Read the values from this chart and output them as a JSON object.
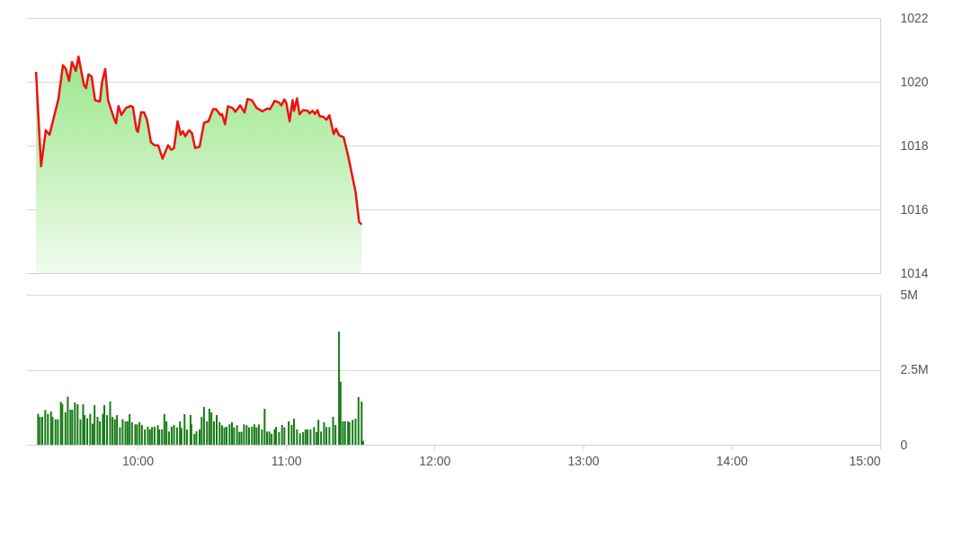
{
  "chart_data": [
    {
      "type": "area",
      "xlim": [
        9.25,
        15
      ],
      "ylim": [
        1014,
        1022
      ],
      "yticks": [
        1014,
        1016,
        1018,
        1020,
        1022
      ],
      "grid": "y",
      "tick_labels": "y",
      "x": [
        9.317,
        9.351,
        9.383,
        9.408,
        9.468,
        9.498,
        9.518,
        9.539,
        9.559,
        9.585,
        9.603,
        9.64,
        9.654,
        9.67,
        9.691,
        9.715,
        9.747,
        9.761,
        9.783,
        9.802,
        9.842,
        9.856,
        9.872,
        9.892,
        9.923,
        9.953,
        9.969,
        9.994,
        10.003,
        10.024,
        10.044,
        10.064,
        10.091,
        10.115,
        10.139,
        10.169,
        10.206,
        10.226,
        10.246,
        10.27,
        10.291,
        10.306,
        10.321,
        10.347,
        10.367,
        10.388,
        10.418,
        10.448,
        10.478,
        10.509,
        10.529,
        10.559,
        10.569,
        10.589,
        10.609,
        10.64,
        10.66,
        10.691,
        10.721,
        10.741,
        10.771,
        10.802,
        10.842,
        10.872,
        10.892,
        10.923,
        10.953,
        10.969,
        10.989,
        11.003,
        11.024,
        11.044,
        11.054,
        11.074,
        11.091,
        11.115,
        11.145,
        11.159,
        11.179,
        11.195,
        11.212,
        11.226,
        11.252,
        11.272,
        11.292,
        11.321,
        11.337,
        11.357,
        11.388,
        11.418,
        11.468,
        11.492,
        11.509
      ],
      "series": [
        {
          "color": "#ee1111",
          "values": [
            1020.31,
            1017.35,
            1018.48,
            1018.34,
            1019.46,
            1020.52,
            1020.4,
            1020.03,
            1020.62,
            1020.34,
            1020.79,
            1019.89,
            1019.8,
            1020.23,
            1020.17,
            1019.42,
            1019.38,
            1019.98,
            1020.4,
            1019.42,
            1018.85,
            1018.7,
            1019.24,
            1018.96,
            1019.18,
            1019.24,
            1019.21,
            1018.48,
            1018.43,
            1019.04,
            1019.04,
            1018.81,
            1018.1,
            1018.01,
            1018.01,
            1017.59,
            1018.01,
            1017.87,
            1017.92,
            1018.76,
            1018.34,
            1018.45,
            1018.29,
            1018.48,
            1018.39,
            1017.92,
            1017.96,
            1018.71,
            1018.76,
            1019.14,
            1019.14,
            1018.95,
            1018.99,
            1018.67,
            1019.23,
            1019.18,
            1019.06,
            1019.26,
            1019.04,
            1019.46,
            1019.42,
            1019.18,
            1019.07,
            1019.16,
            1019.14,
            1019.4,
            1019.35,
            1019.26,
            1019.45,
            1019.32,
            1018.76,
            1019.42,
            1019.09,
            1019.48,
            1018.98,
            1019.11,
            1019.09,
            1019.01,
            1019.09,
            1018.99,
            1019.11,
            1018.92,
            1018.9,
            1018.81,
            1018.95,
            1018.36,
            1018.53,
            1018.32,
            1018.26,
            1017.68,
            1016.55,
            1015.61,
            1015.52
          ]
        }
      ]
    },
    {
      "type": "bar",
      "xlim": [
        9.25,
        15
      ],
      "xticks": [
        {
          "value": 10,
          "label": "10:00"
        },
        {
          "value": 11,
          "label": "11:00"
        },
        {
          "value": 12,
          "label": "12:00"
        },
        {
          "value": 13,
          "label": "13:00"
        },
        {
          "value": 14,
          "label": "14:00"
        },
        {
          "value": 15,
          "label": "15:00"
        }
      ],
      "ylim": [
        0,
        5
      ],
      "yticks": [
        0,
        {
          "value": 2.5,
          "label": "2.5M"
        },
        {
          "value": 5,
          "label": "5M"
        }
      ],
      "grid": "y",
      "color": "#157a15",
      "x": [
        9.331,
        9.343,
        9.359,
        9.379,
        9.397,
        9.418,
        9.428,
        9.448,
        9.464,
        9.484,
        9.494,
        9.515,
        9.531,
        9.549,
        9.561,
        9.579,
        9.597,
        9.616,
        9.634,
        9.644,
        9.662,
        9.682,
        9.698,
        9.711,
        9.731,
        9.747,
        9.767,
        9.777,
        9.795,
        9.816,
        9.832,
        9.848,
        9.862,
        9.882,
        9.9,
        9.919,
        9.933,
        9.947,
        9.963,
        9.985,
        9.997,
        10.014,
        10.03,
        10.05,
        10.07,
        10.084,
        10.098,
        10.115,
        10.137,
        10.147,
        10.165,
        10.181,
        10.195,
        10.212,
        10.23,
        10.246,
        10.266,
        10.286,
        10.296,
        10.317,
        10.333,
        10.357,
        10.363,
        10.383,
        10.397,
        10.418,
        10.432,
        10.448,
        10.468,
        10.484,
        10.498,
        10.515,
        10.533,
        10.553,
        10.569,
        10.585,
        10.6,
        10.62,
        10.636,
        10.65,
        10.67,
        10.686,
        10.7,
        10.717,
        10.735,
        10.751,
        10.771,
        10.787,
        10.802,
        10.817,
        10.838,
        10.856,
        10.872,
        10.888,
        10.903,
        10.923,
        10.933,
        10.953,
        10.973,
        10.989,
        11.018,
        11.038,
        11.054,
        11.074,
        11.094,
        11.115,
        11.131,
        11.145,
        11.165,
        11.189,
        11.206,
        11.218,
        11.236,
        11.256,
        11.272,
        11.292,
        11.317,
        11.333,
        11.357,
        11.367,
        11.383,
        11.397,
        11.418,
        11.427,
        11.448,
        11.468,
        11.488,
        11.509,
        11.519
      ],
      "values": [
        1.03,
        0.93,
        0.93,
        1.16,
        1.03,
        1.11,
        0.93,
        0.85,
        0.85,
        1.43,
        1.36,
        1.08,
        1.6,
        1.17,
        1.17,
        1.41,
        1.35,
        0.85,
        1.35,
        0.99,
        0.88,
        1.03,
        0.7,
        1.32,
        0.93,
        0.78,
        1.03,
        1.32,
        0.99,
        1.44,
        0.93,
        0.85,
        0.99,
        0.58,
        0.85,
        0.78,
        0.78,
        1.02,
        0.75,
        0.68,
        0.68,
        0.75,
        0.66,
        0.51,
        0.6,
        0.51,
        0.59,
        0.6,
        0.65,
        0.51,
        0.51,
        1.02,
        0.78,
        0.44,
        0.6,
        0.66,
        0.58,
        0.78,
        0.56,
        1.02,
        0.51,
        0.99,
        0.68,
        0.36,
        0.45,
        0.51,
        0.93,
        1.26,
        0.78,
        1.2,
        1.08,
        0.78,
        0.99,
        0.75,
        0.65,
        0.58,
        0.6,
        0.68,
        0.75,
        0.58,
        0.65,
        0.43,
        0.43,
        0.68,
        0.65,
        0.58,
        0.6,
        0.68,
        0.58,
        0.68,
        0.51,
        1.2,
        0.44,
        0.44,
        0.36,
        0.51,
        0.59,
        0.42,
        0.66,
        0.58,
        0.78,
        0.66,
        0.87,
        0.51,
        0.38,
        0.42,
        0.51,
        0.51,
        0.51,
        0.59,
        0.42,
        0.83,
        0.44,
        0.75,
        0.59,
        0.59,
        0.93,
        0.66,
        3.77,
        2.1,
        0.78,
        0.78,
        0.78,
        0.75,
        0.83,
        0.87,
        1.59,
        1.44,
        0.13
      ]
    }
  ]
}
